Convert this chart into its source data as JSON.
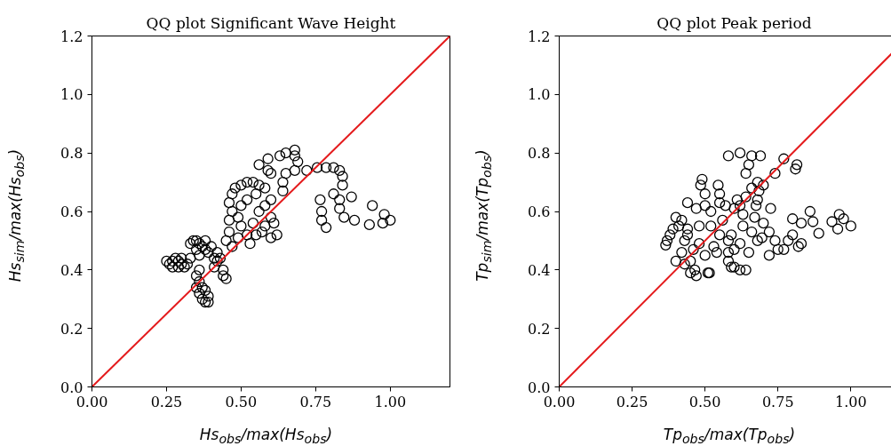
{
  "chart_data": [
    {
      "type": "scatter",
      "title": "QQ plot Significant Wave Height",
      "xlabel": "Hs$_{obs}$/max(Hs$_{obs}$)",
      "ylabel": "Hs$_{sim}$/max(Hs$_{obs}$)",
      "xlim": [
        0,
        1.2
      ],
      "ylim": [
        0,
        1.2
      ],
      "xticks": [
        {
          "value": 0,
          "label": "0.00"
        },
        {
          "value": 0.25,
          "label": "0.25"
        },
        {
          "value": 0.5,
          "label": "0.50"
        },
        {
          "value": 0.75,
          "label": "0.75"
        },
        {
          "value": 1,
          "label": "1.00"
        }
      ],
      "yticks": [
        {
          "value": 0,
          "label": "0.0"
        },
        {
          "value": 0.2,
          "label": "0.2"
        },
        {
          "value": 0.4,
          "label": "0.4"
        },
        {
          "value": 0.6,
          "label": "0.6"
        },
        {
          "value": 0.8,
          "label": "0.8"
        },
        {
          "value": 1,
          "label": "1.0"
        },
        {
          "value": 1.2,
          "label": "1.2"
        }
      ],
      "grid": false,
      "series": [
        {
          "color": "#000000",
          "marker": "circle",
          "x": [
            0.25,
            0.26,
            0.27,
            0.28,
            0.29,
            0.3,
            0.31,
            0.32,
            0.27,
            0.29,
            0.33,
            0.3,
            0.33,
            0.34,
            0.35,
            0.36,
            0.37,
            0.38,
            0.39,
            0.35,
            0.36,
            0.38,
            0.4,
            0.41,
            0.36,
            0.35,
            0.36,
            0.37,
            0.36,
            0.37,
            0.38,
            0.39,
            0.39,
            0.38,
            0.35,
            0.41,
            0.42,
            0.44,
            0.45,
            0.44,
            0.43,
            0.42,
            0.45,
            0.46,
            0.46,
            0.47,
            0.46,
            0.47,
            0.48,
            0.5,
            0.52,
            0.54,
            0.56,
            0.58,
            0.55,
            0.52,
            0.5,
            0.49,
            0.5,
            0.52,
            0.54,
            0.56,
            0.58,
            0.6,
            0.6,
            0.58,
            0.55,
            0.53,
            0.57,
            0.61,
            0.62,
            0.6,
            0.49,
            0.47,
            0.56,
            0.59,
            0.63,
            0.65,
            0.68,
            0.68,
            0.69,
            0.68,
            0.65,
            0.6,
            0.59,
            0.64,
            0.64,
            0.72,
            0.755,
            0.785,
            0.81,
            0.83,
            0.84,
            0.84,
            0.83,
            0.83,
            0.845,
            0.88,
            0.87,
            0.81,
            0.765,
            0.77,
            0.77,
            0.785,
            0.93,
            0.94,
            0.975,
            0.98,
            1.0
          ],
          "values": [
            0.43,
            0.42,
            0.43,
            0.44,
            0.43,
            0.42,
            0.41,
            0.42,
            0.41,
            0.41,
            0.44,
            0.44,
            0.49,
            0.5,
            0.5,
            0.49,
            0.48,
            0.47,
            0.46,
            0.47,
            0.45,
            0.5,
            0.48,
            0.44,
            0.4,
            0.38,
            0.36,
            0.34,
            0.32,
            0.3,
            0.29,
            0.29,
            0.31,
            0.33,
            0.34,
            0.41,
            0.43,
            0.38,
            0.37,
            0.4,
            0.44,
            0.46,
            0.5,
            0.53,
            0.57,
            0.6,
            0.63,
            0.66,
            0.68,
            0.69,
            0.7,
            0.7,
            0.69,
            0.68,
            0.66,
            0.64,
            0.62,
            0.58,
            0.55,
            0.52,
            0.56,
            0.6,
            0.62,
            0.64,
            0.58,
            0.55,
            0.52,
            0.49,
            0.53,
            0.56,
            0.52,
            0.51,
            0.51,
            0.48,
            0.76,
            0.78,
            0.79,
            0.8,
            0.81,
            0.79,
            0.77,
            0.74,
            0.73,
            0.73,
            0.74,
            0.7,
            0.67,
            0.74,
            0.75,
            0.75,
            0.75,
            0.74,
            0.72,
            0.69,
            0.64,
            0.61,
            0.58,
            0.57,
            0.65,
            0.66,
            0.64,
            0.6,
            0.57,
            0.545,
            0.555,
            0.62,
            0.56,
            0.59,
            0.57
          ]
        },
        {
          "type": "line",
          "color": "#e41a1c",
          "x": [
            0,
            1.2
          ],
          "values": [
            0,
            1.2
          ]
        }
      ]
    },
    {
      "type": "scatter",
      "title": "QQ plot Peak period",
      "xlabel": "Tp$_{obs}$/max(Tp$_{obs}$)",
      "ylabel": "Tp$_{sim}$/max(Tp$_{obs}$)",
      "xlim": [
        0,
        1.2
      ],
      "ylim": [
        0,
        1.2
      ],
      "xticks": [
        {
          "value": 0,
          "label": "0.00"
        },
        {
          "value": 0.25,
          "label": "0.25"
        },
        {
          "value": 0.5,
          "label": "0.50"
        },
        {
          "value": 0.75,
          "label": "0.75"
        },
        {
          "value": 1,
          "label": "1.00"
        }
      ],
      "yticks": [
        {
          "value": 0,
          "label": "0.0"
        },
        {
          "value": 0.2,
          "label": "0.2"
        },
        {
          "value": 0.4,
          "label": "0.4"
        },
        {
          "value": 0.6,
          "label": "0.6"
        },
        {
          "value": 0.8,
          "label": "0.8"
        },
        {
          "value": 1,
          "label": "1.0"
        },
        {
          "value": 1.2,
          "label": "1.2"
        }
      ],
      "grid": false,
      "series": [
        {
          "color": "#000000",
          "marker": "circle",
          "x": [
            0.58,
            0.62,
            0.66,
            0.69,
            0.65,
            0.64,
            0.77,
            0.815,
            0.81,
            0.49,
            0.485,
            0.545,
            0.68,
            0.74,
            0.44,
            0.5,
            0.55,
            0.61,
            0.64,
            0.68,
            0.725,
            0.8,
            0.83,
            0.86,
            0.87,
            0.89,
            0.935,
            0.96,
            0.975,
            0.955,
            1.0,
            0.77,
            0.785,
            0.8,
            0.82,
            0.83,
            0.365,
            0.37,
            0.39,
            0.4,
            0.41,
            0.43,
            0.44,
            0.48,
            0.43,
            0.45,
            0.465,
            0.51,
            0.515,
            0.5,
            0.54,
            0.53,
            0.55,
            0.58,
            0.59,
            0.6,
            0.6,
            0.65,
            0.58,
            0.59,
            0.63,
            0.63,
            0.67,
            0.7,
            0.72,
            0.74,
            0.695,
            0.68,
            0.685,
            0.675,
            0.45,
            0.47,
            0.62,
            0.64,
            0.47,
            0.5,
            0.52,
            0.55,
            0.57,
            0.6,
            0.62,
            0.66,
            0.7,
            0.4,
            0.42,
            0.38,
            0.42,
            0.46,
            0.44,
            0.48,
            0.52,
            0.56,
            0.58,
            0.62,
            0.66,
            0.75,
            0.72
          ],
          "values": [
            0.79,
            0.8,
            0.79,
            0.79,
            0.76,
            0.73,
            0.78,
            0.76,
            0.745,
            0.71,
            0.69,
            0.69,
            0.7,
            0.73,
            0.63,
            0.66,
            0.66,
            0.64,
            0.65,
            0.64,
            0.61,
            0.575,
            0.56,
            0.6,
            0.565,
            0.525,
            0.565,
            0.59,
            0.575,
            0.54,
            0.55,
            0.47,
            0.5,
            0.52,
            0.48,
            0.49,
            0.485,
            0.5,
            0.54,
            0.43,
            0.55,
            0.5,
            0.52,
            0.55,
            0.42,
            0.43,
            0.4,
            0.39,
            0.39,
            0.45,
            0.46,
            0.48,
            0.52,
            0.43,
            0.41,
            0.41,
            0.47,
            0.46,
            0.46,
            0.52,
            0.55,
            0.59,
            0.58,
            0.56,
            0.53,
            0.5,
            0.51,
            0.5,
            0.67,
            0.62,
            0.39,
            0.38,
            0.4,
            0.4,
            0.61,
            0.62,
            0.6,
            0.63,
            0.62,
            0.61,
            0.62,
            0.68,
            0.69,
            0.58,
            0.57,
            0.52,
            0.46,
            0.47,
            0.54,
            0.49,
            0.55,
            0.57,
            0.5,
            0.49,
            0.53,
            0.47,
            0.45
          ]
        },
        {
          "type": "line",
          "color": "#e41a1c",
          "x": [
            0,
            1.2
          ],
          "values": [
            0,
            1.2
          ]
        }
      ]
    }
  ]
}
